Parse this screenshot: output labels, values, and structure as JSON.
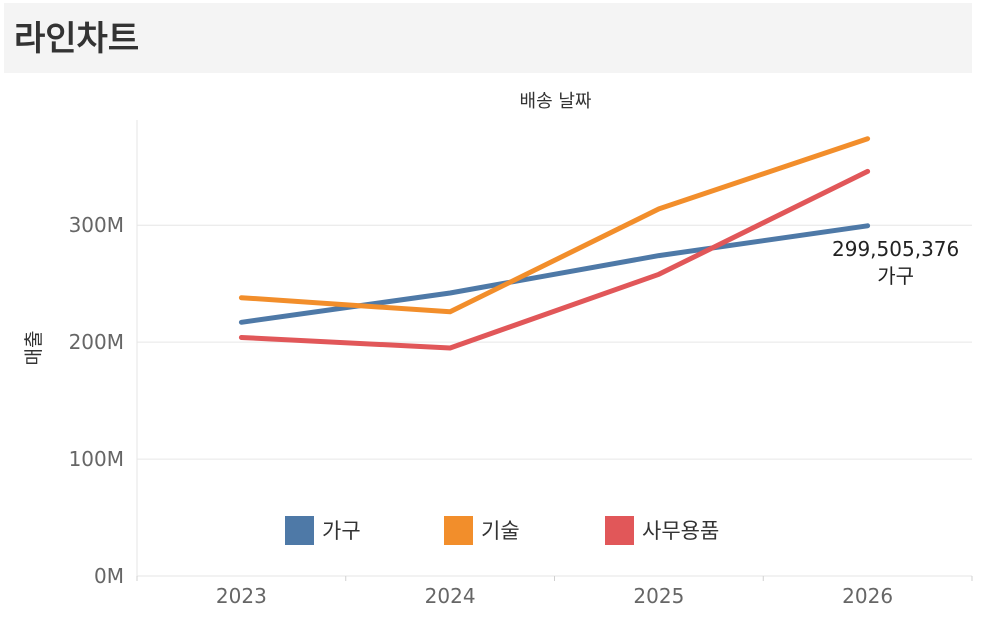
{
  "page": {
    "title": "라인차트"
  },
  "chart_data": {
    "type": "line",
    "title": "",
    "xlabel": "배송 날짜",
    "ylabel": "매출",
    "x": [
      "2023",
      "2024",
      "2025",
      "2026"
    ],
    "y_ticks": [
      {
        "value": 0,
        "label": "0M"
      },
      {
        "value": 100000000,
        "label": "100M"
      },
      {
        "value": 200000000,
        "label": "200M"
      },
      {
        "value": 300000000,
        "label": "300M"
      }
    ],
    "ylim": [
      0,
      390000000
    ],
    "grid": true,
    "legend_position": "bottom-center",
    "series": [
      {
        "name": "가구",
        "color": "#4e79a7",
        "values": [
          217000000,
          242000000,
          274000000,
          299505376
        ]
      },
      {
        "name": "기술",
        "color": "#f28e2b",
        "values": [
          238000000,
          226000000,
          314000000,
          374000000
        ]
      },
      {
        "name": "사무용품",
        "color": "#e15759",
        "values": [
          204000000,
          195000000,
          258000000,
          346000000
        ]
      }
    ],
    "annotation": {
      "series_index": 0,
      "point_index": 3,
      "value_label": "299,505,376",
      "series_label": "가구"
    }
  }
}
